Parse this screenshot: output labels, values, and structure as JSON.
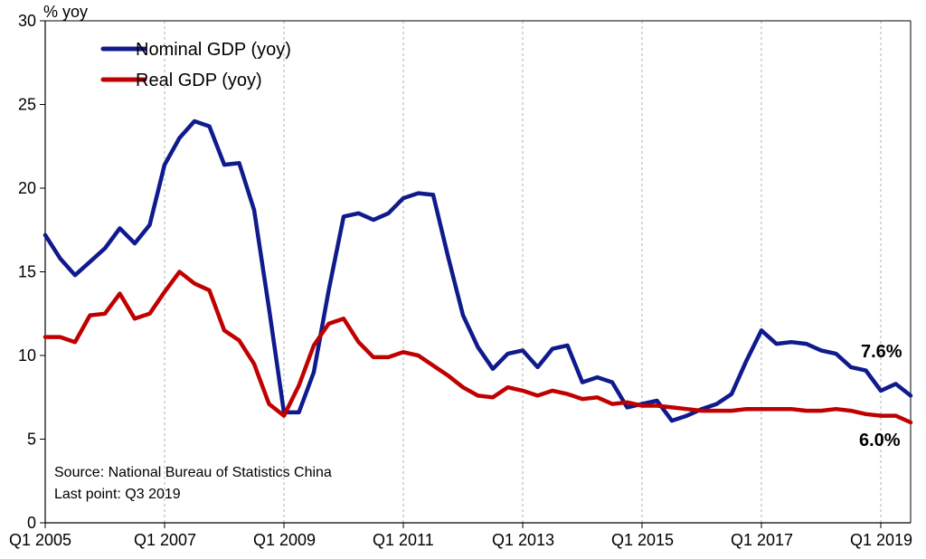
{
  "chart_data": {
    "type": "line",
    "ylabel": "% yoy",
    "ylim": [
      0,
      30
    ],
    "yticks": [
      0,
      5,
      10,
      15,
      20,
      25,
      30
    ],
    "x_tick_labels": [
      "Q1 2005",
      "Q1 2007",
      "Q1 2009",
      "Q1 2011",
      "Q1 2013",
      "Q1 2015",
      "Q1 2017",
      "Q1 2019"
    ],
    "x": [
      "Q1 2005",
      "Q2 2005",
      "Q3 2005",
      "Q4 2005",
      "Q1 2006",
      "Q2 2006",
      "Q3 2006",
      "Q4 2006",
      "Q1 2007",
      "Q2 2007",
      "Q3 2007",
      "Q4 2007",
      "Q1 2008",
      "Q2 2008",
      "Q3 2008",
      "Q4 2008",
      "Q1 2009",
      "Q2 2009",
      "Q3 2009",
      "Q4 2009",
      "Q1 2010",
      "Q2 2010",
      "Q3 2010",
      "Q4 2010",
      "Q1 2011",
      "Q2 2011",
      "Q3 2011",
      "Q4 2011",
      "Q1 2012",
      "Q2 2012",
      "Q3 2012",
      "Q4 2012",
      "Q1 2013",
      "Q2 2013",
      "Q3 2013",
      "Q4 2013",
      "Q1 2014",
      "Q2 2014",
      "Q3 2014",
      "Q4 2014",
      "Q1 2015",
      "Q2 2015",
      "Q3 2015",
      "Q4 2015",
      "Q1 2016",
      "Q2 2016",
      "Q3 2016",
      "Q4 2016",
      "Q1 2017",
      "Q2 2017",
      "Q3 2017",
      "Q4 2017",
      "Q1 2018",
      "Q2 2018",
      "Q3 2018",
      "Q4 2018",
      "Q1 2019",
      "Q2 2019",
      "Q3 2019"
    ],
    "series": [
      {
        "name": "Nominal GDP (yoy)",
        "color": "#0f1a8c",
        "values": [
          17.2,
          15.8,
          14.8,
          15.6,
          16.4,
          17.6,
          16.7,
          17.8,
          21.4,
          23.0,
          24.0,
          23.7,
          21.4,
          21.5,
          18.7,
          12.8,
          6.6,
          6.6,
          9.0,
          13.9,
          18.3,
          18.5,
          18.1,
          18.5,
          19.4,
          19.7,
          19.6,
          15.9,
          12.4,
          10.5,
          9.2,
          10.1,
          10.3,
          9.3,
          10.4,
          10.6,
          8.4,
          8.7,
          8.4,
          6.9,
          7.1,
          7.3,
          6.1,
          6.4,
          6.8,
          7.1,
          7.7,
          9.7,
          11.5,
          10.7,
          10.8,
          10.7,
          10.3,
          10.1,
          9.3,
          9.1,
          7.9,
          8.3,
          7.6
        ]
      },
      {
        "name": "Real GDP (yoy)",
        "color": "#c00000",
        "values": [
          11.1,
          11.1,
          10.8,
          12.4,
          12.5,
          13.7,
          12.2,
          12.5,
          13.8,
          15.0,
          14.3,
          13.9,
          11.5,
          10.9,
          9.5,
          7.1,
          6.4,
          8.2,
          10.6,
          11.9,
          12.2,
          10.8,
          9.9,
          9.9,
          10.2,
          10.0,
          9.4,
          8.8,
          8.1,
          7.6,
          7.5,
          8.1,
          7.9,
          7.6,
          7.9,
          7.7,
          7.4,
          7.5,
          7.1,
          7.2,
          7.0,
          7.0,
          6.9,
          6.8,
          6.7,
          6.7,
          6.7,
          6.8,
          6.8,
          6.8,
          6.8,
          6.7,
          6.7,
          6.8,
          6.7,
          6.5,
          6.4,
          6.4,
          6.0
        ]
      }
    ],
    "legend": {
      "placement": "top-left",
      "entries": [
        "Nominal GDP (yoy)",
        "Real GDP (yoy)"
      ]
    },
    "annotations": {
      "nominal_last": "7.6%",
      "real_last": "6.0%",
      "source": "Source: National Bureau of Statistics China",
      "last_point": "Last point: Q3 2019"
    },
    "grid": {
      "vertical": true,
      "horizontal": false
    }
  }
}
